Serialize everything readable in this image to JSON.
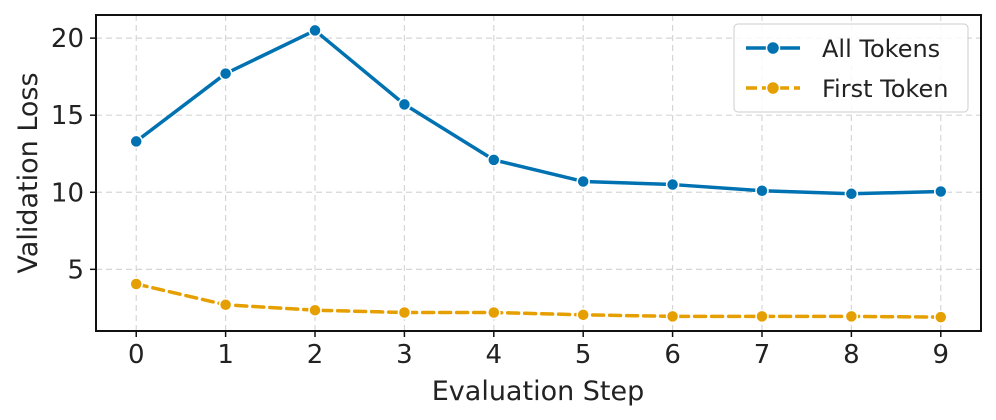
{
  "chart_data": {
    "type": "line",
    "xlabel": "Evaluation Step",
    "ylabel": "Validation Loss",
    "x": [
      0,
      1,
      2,
      3,
      4,
      5,
      6,
      7,
      8,
      9
    ],
    "xticks": [
      "0",
      "1",
      "2",
      "3",
      "4",
      "5",
      "6",
      "7",
      "8",
      "9"
    ],
    "yticks": [
      "5",
      "10",
      "15",
      "20"
    ],
    "xlim": [
      -0.45,
      9.45
    ],
    "ylim": [
      1.0,
      21.5
    ],
    "grid": true,
    "legend_position": "top-right",
    "series": [
      {
        "name": "All Tokens",
        "color": "#0072b2",
        "line_style": "solid",
        "values": [
          13.3,
          17.7,
          20.5,
          15.7,
          12.1,
          10.7,
          10.5,
          10.1,
          9.9,
          10.05
        ]
      },
      {
        "name": "First Token",
        "color": "#e69f00",
        "line_style": "dashed",
        "values": [
          4.05,
          2.7,
          2.35,
          2.2,
          2.2,
          2.05,
          1.95,
          1.95,
          1.95,
          1.9
        ]
      }
    ]
  }
}
